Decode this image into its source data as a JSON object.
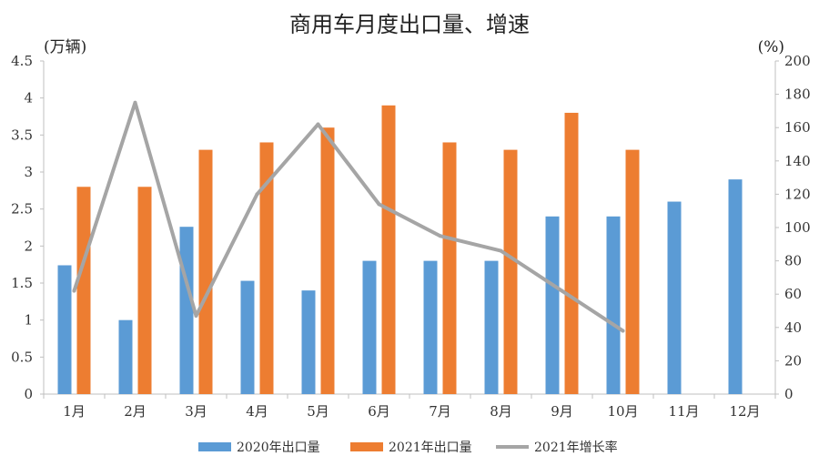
{
  "chart_data": {
    "type": "bar",
    "title": "商用车月度出口量、增速",
    "categories": [
      "1月",
      "2月",
      "3月",
      "4月",
      "5月",
      "6月",
      "7月",
      "8月",
      "9月",
      "10月",
      "11月",
      "12月"
    ],
    "y_left": {
      "unit": "(万辆)",
      "ylim": [
        0,
        4.5
      ],
      "ticks": [
        "0",
        "0.5",
        "1",
        "1.5",
        "2",
        "2.5",
        "3",
        "3.5",
        "4",
        "4.5"
      ]
    },
    "y_right": {
      "unit": "(%)",
      "ylim": [
        0,
        200
      ],
      "ticks": [
        "0",
        "20",
        "40",
        "60",
        "80",
        "100",
        "120",
        "140",
        "160",
        "180",
        "200"
      ]
    },
    "series": [
      {
        "name": "2020年出口量",
        "type": "bar",
        "axis": "left",
        "color": "#5b9bd5",
        "values": [
          1.74,
          1.0,
          2.26,
          1.53,
          1.4,
          1.8,
          1.8,
          1.8,
          2.4,
          2.4,
          2.6,
          2.9
        ]
      },
      {
        "name": "2021年出口量",
        "type": "bar",
        "axis": "left",
        "color": "#ed7d31",
        "values": [
          2.8,
          2.8,
          3.3,
          3.4,
          3.6,
          3.9,
          3.4,
          3.3,
          3.8,
          3.3,
          null,
          null
        ]
      },
      {
        "name": "2021年增长率",
        "type": "line",
        "axis": "right",
        "color": "#a5a5a5",
        "values": [
          62,
          175,
          47,
          120,
          162,
          114,
          95,
          86,
          62,
          38,
          null,
          null
        ]
      }
    ],
    "grid": false,
    "legend_position": "bottom"
  }
}
